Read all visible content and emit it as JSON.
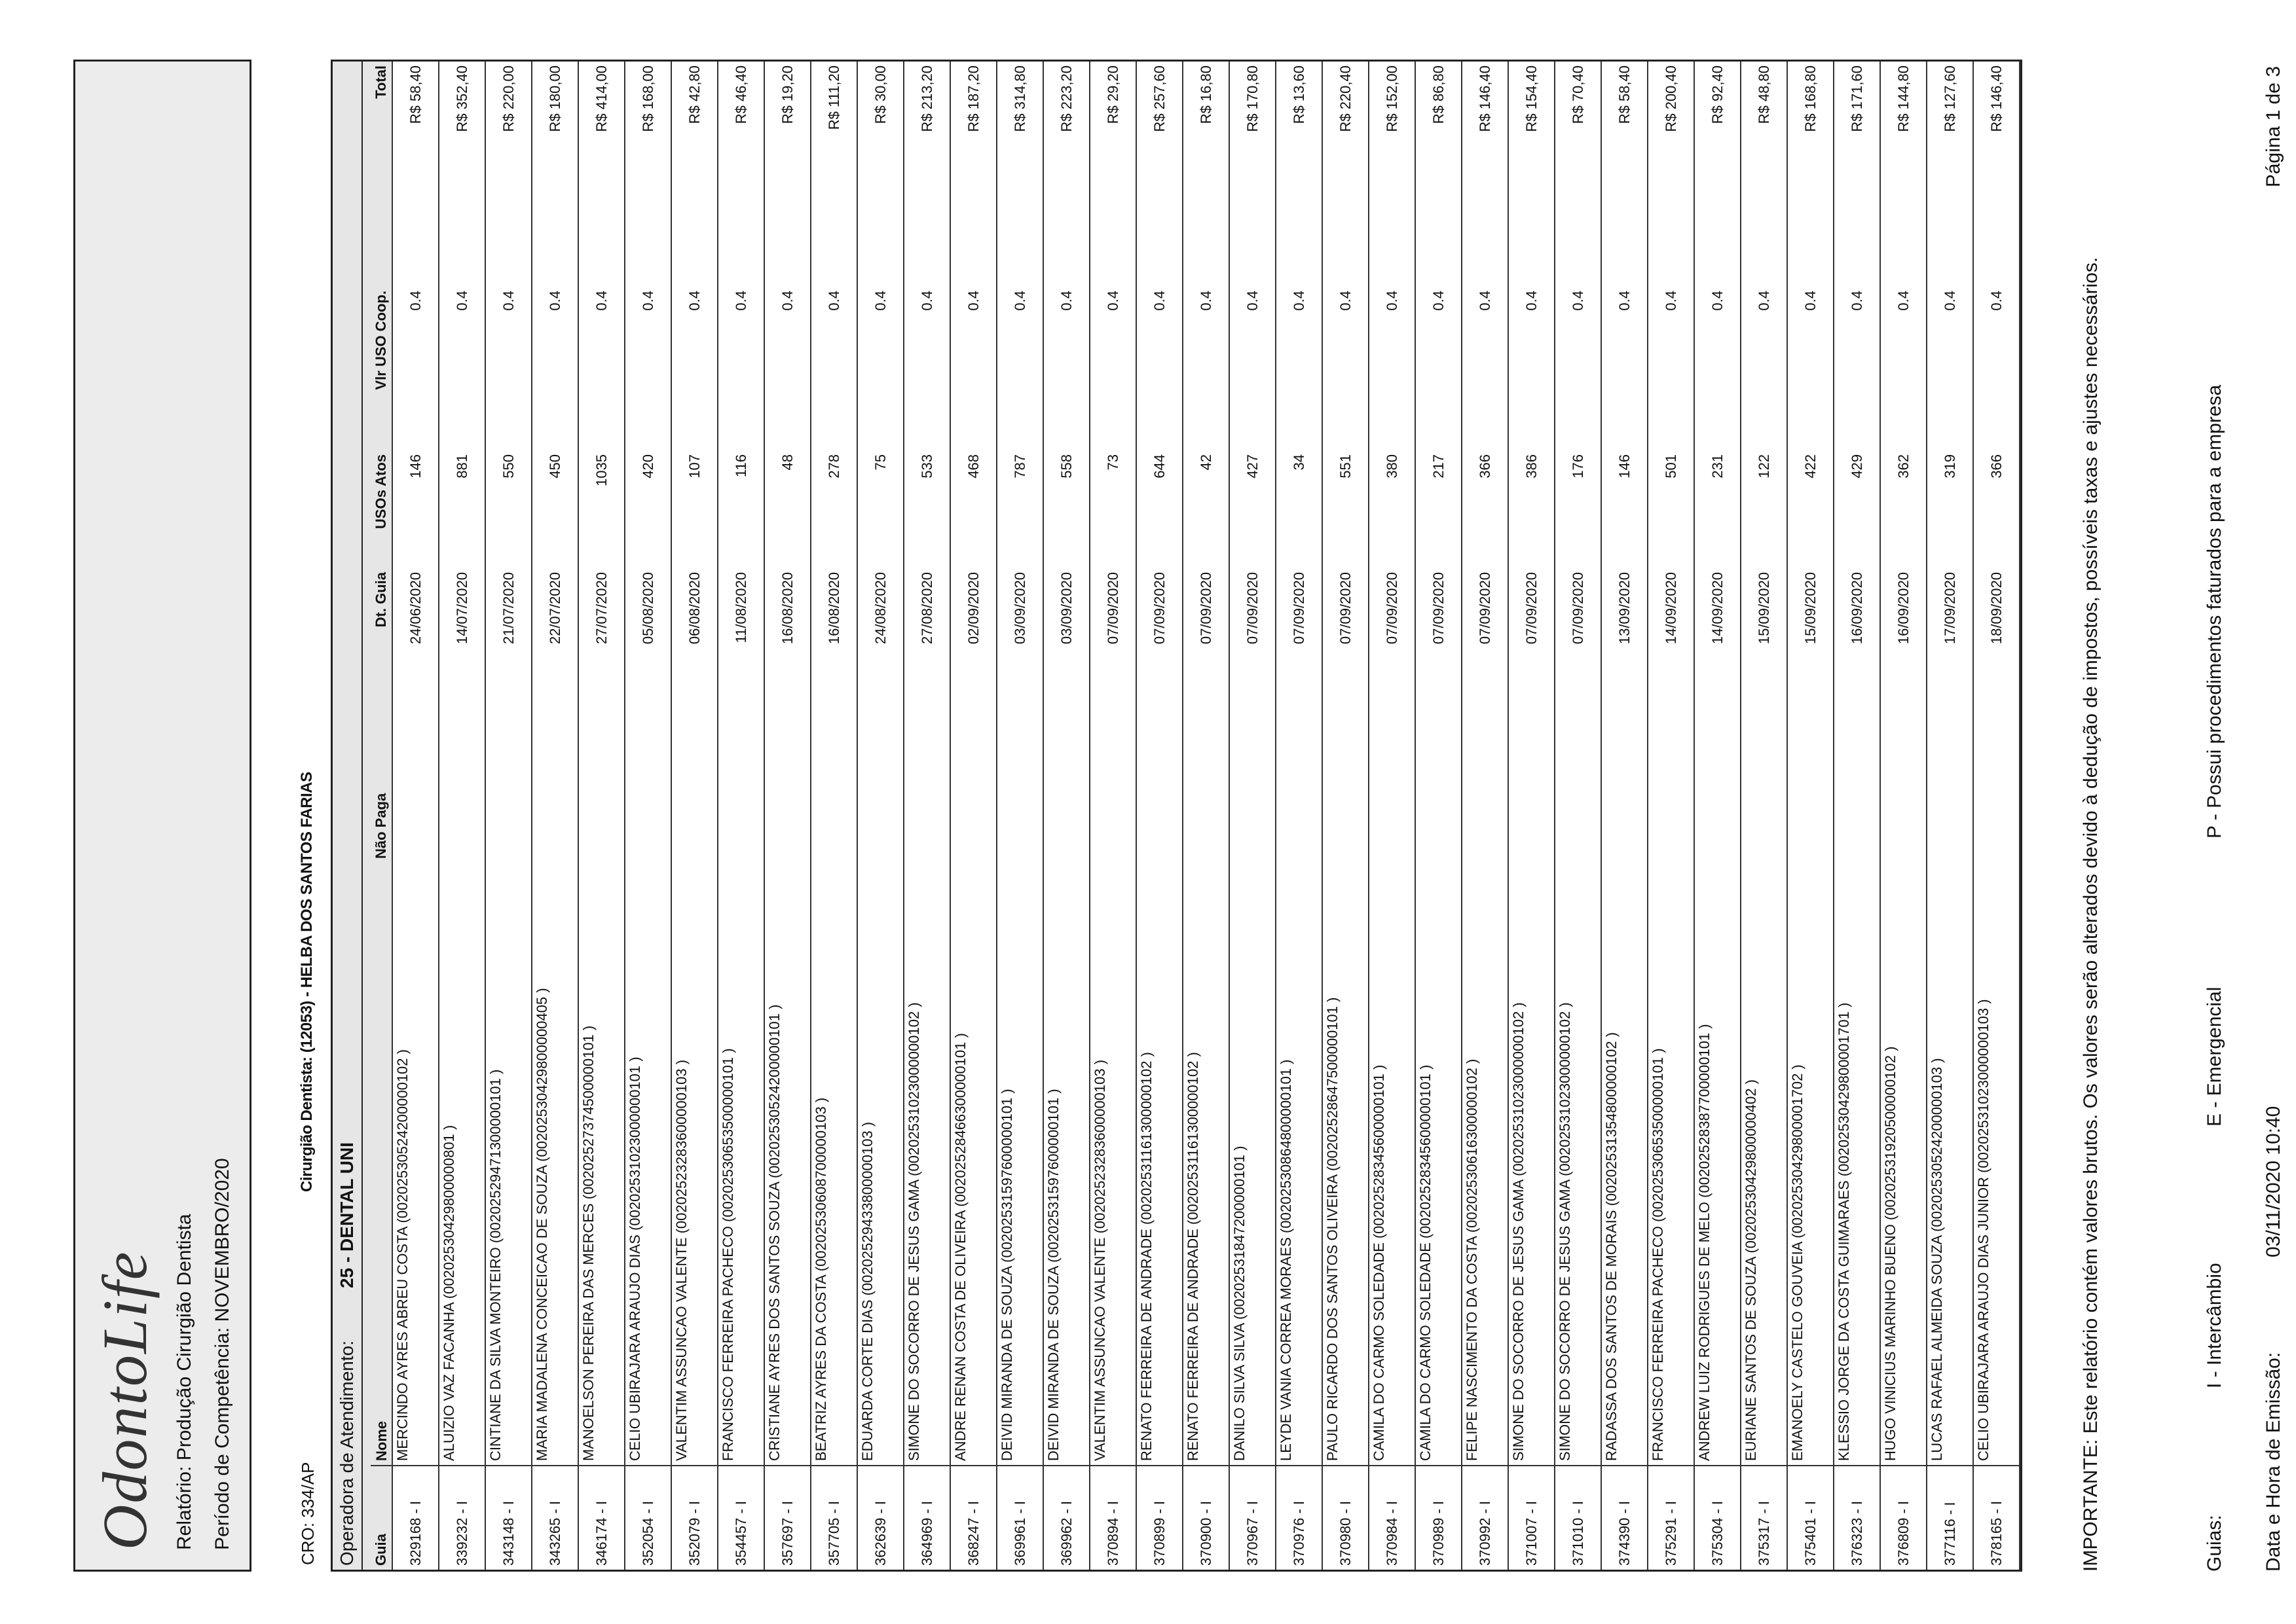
{
  "header": {
    "logo": "OdontoLife",
    "report": "Relatório: Produção Cirurgião Dentista",
    "period": "Período de Competência: NOVEMBRO/2020"
  },
  "cro": "CRO: 334/AP",
  "dentist": "Cirurgião Dentista: (12053) - HELBA DOS SANTOS FARIAS",
  "operator_label": "Operadora de Atendimento:",
  "operator": "25 - DENTAL UNI",
  "table": {
    "columns": {
      "guia": "Guia",
      "nome": "Nome",
      "nao_paga": "Não Paga",
      "dt_guia": "Dt. Guia",
      "usos_atos": "USOs Atos",
      "vlr_uso_coop": "Vlr USO Coop.",
      "total": "Total"
    },
    "rows": [
      {
        "guia": "329168 - I",
        "nome": "MERCINDO AYRES ABREU COSTA (00202530524200000102 )",
        "dt_guia": "24/06/2020",
        "usos_atos": "146",
        "vlr_uso_coop": "0.4",
        "total": "R$ 58,40"
      },
      {
        "guia": "339232 - I",
        "nome": "ALUIZIO VAZ FACANHA (00202530429800000801 )",
        "dt_guia": "14/07/2020",
        "usos_atos": "881",
        "vlr_uso_coop": "0.4",
        "total": "R$ 352,40"
      },
      {
        "guia": "343148 - I",
        "nome": "CINTIANE DA SILVA MONTEIRO (00202529471300000101 )",
        "dt_guia": "21/07/2020",
        "usos_atos": "550",
        "vlr_uso_coop": "0.4",
        "total": "R$ 220,00"
      },
      {
        "guia": "343265 - I",
        "nome": "MARIA MADALENA CONCEICAO DE SOUZA (00202530429800000405 )",
        "dt_guia": "22/07/2020",
        "usos_atos": "450",
        "vlr_uso_coop": "0.4",
        "total": "R$ 180,00"
      },
      {
        "guia": "346174 - I",
        "nome": "MANOELSON PEREIRA DAS MERCES (00202527374500000101 )",
        "dt_guia": "27/07/2020",
        "usos_atos": "1035",
        "vlr_uso_coop": "0.4",
        "total": "R$ 414,00"
      },
      {
        "guia": "352054 - I",
        "nome": "CELIO UBIRAJARA ARAUJO DIAS (00202531023000000101 )",
        "dt_guia": "05/08/2020",
        "usos_atos": "420",
        "vlr_uso_coop": "0.4",
        "total": "R$ 168,00"
      },
      {
        "guia": "352079 - I",
        "nome": "VALENTIM ASSUNCAO VALENTE (00202523283600000103 )",
        "dt_guia": "06/08/2020",
        "usos_atos": "107",
        "vlr_uso_coop": "0.4",
        "total": "R$ 42,80"
      },
      {
        "guia": "354457 - I",
        "nome": "FRANCISCO FERREIRA PACHECO (00202530653500000101 )",
        "dt_guia": "11/08/2020",
        "usos_atos": "116",
        "vlr_uso_coop": "0.4",
        "total": "R$ 46,40"
      },
      {
        "guia": "357697 - I",
        "nome": "CRISTIANE AYRES DOS SANTOS SOUZA (00202530524200000101 )",
        "dt_guia": "16/08/2020",
        "usos_atos": "48",
        "vlr_uso_coop": "0.4",
        "total": "R$ 19,20"
      },
      {
        "guia": "357705 - I",
        "nome": "BEATRIZ AYRES DA COSTA (00202530608700000103 )",
        "dt_guia": "16/08/2020",
        "usos_atos": "278",
        "vlr_uso_coop": "0.4",
        "total": "R$ 111,20"
      },
      {
        "guia": "362639 - I",
        "nome": "EDUARDA CORTE DIAS (00202529433800000103 )",
        "dt_guia": "24/08/2020",
        "usos_atos": "75",
        "vlr_uso_coop": "0.4",
        "total": "R$ 30,00"
      },
      {
        "guia": "364969 - I",
        "nome": "SIMONE DO SOCORRO DE JESUS GAMA (00202531023000000102 )",
        "dt_guia": "27/08/2020",
        "usos_atos": "533",
        "vlr_uso_coop": "0.4",
        "total": "R$ 213,20"
      },
      {
        "guia": "368247 - I",
        "nome": "ANDRE RENAN COSTA DE OLIVEIRA (00202528466300000101 )",
        "dt_guia": "02/09/2020",
        "usos_atos": "468",
        "vlr_uso_coop": "0.4",
        "total": "R$ 187,20"
      },
      {
        "guia": "369961 - I",
        "nome": "DEIVID MIRANDA DE SOUZA (00202531597600000101 )",
        "dt_guia": "03/09/2020",
        "usos_atos": "787",
        "vlr_uso_coop": "0.4",
        "total": "R$ 314,80"
      },
      {
        "guia": "369962 - I",
        "nome": "DEIVID MIRANDA DE SOUZA (00202531597600000101 )",
        "dt_guia": "03/09/2020",
        "usos_atos": "558",
        "vlr_uso_coop": "0.4",
        "total": "R$ 223,20"
      },
      {
        "guia": "370894 - I",
        "nome": "VALENTIM ASSUNCAO VALENTE (00202523283600000103 )",
        "dt_guia": "07/09/2020",
        "usos_atos": "73",
        "vlr_uso_coop": "0.4",
        "total": "R$ 29,20"
      },
      {
        "guia": "370899 - I",
        "nome": "RENATO FERREIRA DE ANDRADE (00202531161300000102 )",
        "dt_guia": "07/09/2020",
        "usos_atos": "644",
        "vlr_uso_coop": "0.4",
        "total": "R$ 257,60"
      },
      {
        "guia": "370900 - I",
        "nome": "RENATO FERREIRA DE ANDRADE (00202531161300000102 )",
        "dt_guia": "07/09/2020",
        "usos_atos": "42",
        "vlr_uso_coop": "0.4",
        "total": "R$ 16,80"
      },
      {
        "guia": "370967 - I",
        "nome": "DANILO SILVA SILVA (00202531847200000101 )",
        "dt_guia": "07/09/2020",
        "usos_atos": "427",
        "vlr_uso_coop": "0.4",
        "total": "R$ 170,80"
      },
      {
        "guia": "370976 - I",
        "nome": "LEYDE VANIA CORREA MORAES (00202530864800000101 )",
        "dt_guia": "07/09/2020",
        "usos_atos": "34",
        "vlr_uso_coop": "0.4",
        "total": "R$ 13,60"
      },
      {
        "guia": "370980 - I",
        "nome": "PAULO RICARDO DOS SANTOS OLIVEIRA (00202528647500000101 )",
        "dt_guia": "07/09/2020",
        "usos_atos": "551",
        "vlr_uso_coop": "0.4",
        "total": "R$ 220,40"
      },
      {
        "guia": "370984 - I",
        "nome": "CAMILA DO CARMO SOLEDADE (00202528345600000101 )",
        "dt_guia": "07/09/2020",
        "usos_atos": "380",
        "vlr_uso_coop": "0.4",
        "total": "R$ 152,00"
      },
      {
        "guia": "370989 - I",
        "nome": "CAMILA DO CARMO SOLEDADE (00202528345600000101 )",
        "dt_guia": "07/09/2020",
        "usos_atos": "217",
        "vlr_uso_coop": "0.4",
        "total": "R$ 86,80"
      },
      {
        "guia": "370992 - I",
        "nome": "FELIPE NASCIMENTO DA COSTA (00202530616300000102 )",
        "dt_guia": "07/09/2020",
        "usos_atos": "366",
        "vlr_uso_coop": "0.4",
        "total": "R$ 146,40"
      },
      {
        "guia": "371007 - I",
        "nome": "SIMONE DO SOCORRO DE JESUS GAMA (00202531023000000102 )",
        "dt_guia": "07/09/2020",
        "usos_atos": "386",
        "vlr_uso_coop": "0.4",
        "total": "R$ 154,40"
      },
      {
        "guia": "371010 - I",
        "nome": "SIMONE DO SOCORRO DE JESUS GAMA (00202531023000000102 )",
        "dt_guia": "07/09/2020",
        "usos_atos": "176",
        "vlr_uso_coop": "0.4",
        "total": "R$ 70,40"
      },
      {
        "guia": "374390 - I",
        "nome": "RADASSA DOS SANTOS DE MORAIS (00202531354800000102 )",
        "dt_guia": "13/09/2020",
        "usos_atos": "146",
        "vlr_uso_coop": "0.4",
        "total": "R$ 58,40"
      },
      {
        "guia": "375291 - I",
        "nome": "FRANCISCO FERREIRA PACHECO (00202530653500000101 )",
        "dt_guia": "14/09/2020",
        "usos_atos": "501",
        "vlr_uso_coop": "0.4",
        "total": "R$ 200,40"
      },
      {
        "guia": "375304 - I",
        "nome": "ANDREW LUIZ RODRIGUES DE MELO (00202528387700000101 )",
        "dt_guia": "14/09/2020",
        "usos_atos": "231",
        "vlr_uso_coop": "0.4",
        "total": "R$ 92,40"
      },
      {
        "guia": "375317 - I",
        "nome": "EURIANE SANTOS DE SOUZA (00202530429800000402 )",
        "dt_guia": "15/09/2020",
        "usos_atos": "122",
        "vlr_uso_coop": "0.4",
        "total": "R$ 48,80"
      },
      {
        "guia": "375401 - I",
        "nome": "EMANOELY CASTELO GOUVEIA (00202530429800001702 )",
        "dt_guia": "15/09/2020",
        "usos_atos": "422",
        "vlr_uso_coop": "0.4",
        "total": "R$ 168,80"
      },
      {
        "guia": "376323 - I",
        "nome": "KLESSIO JORGE DA COSTA GUIMARAES (00202530429800001701 )",
        "dt_guia": "16/09/2020",
        "usos_atos": "429",
        "vlr_uso_coop": "0.4",
        "total": "R$ 171,60"
      },
      {
        "guia": "376809 - I",
        "nome": "HUGO VINICIUS MARINHO BUENO (00202531920500000102 )",
        "dt_guia": "16/09/2020",
        "usos_atos": "362",
        "vlr_uso_coop": "0.4",
        "total": "R$ 144,80"
      },
      {
        "guia": "377116 - I",
        "nome": "LUCAS RAFAEL ALMEIDA SOUZA (00202530524200000103 )",
        "dt_guia": "17/09/2020",
        "usos_atos": "319",
        "vlr_uso_coop": "0.4",
        "total": "R$ 127,60"
      },
      {
        "guia": "378165 - I",
        "nome": "CELIO UBIRAJARA ARAUJO DIAS JUNIOR (00202531023000000103 )",
        "dt_guia": "18/09/2020",
        "usos_atos": "366",
        "vlr_uso_coop": "0.4",
        "total": "R$ 146,40"
      }
    ]
  },
  "notice": "IMPORTANTE: Este relatório contém valores brutos. Os valores serão alterados devido à dedução de impostos, possíveis taxas e ajustes necessários.",
  "legend": {
    "label": "Guias:",
    "items": [
      "I - Intercâmbio",
      "E - Emergencial",
      "P - Possui procedimentos faturados para a empresa"
    ]
  },
  "footer": {
    "label": "Data e Hora de Emissão:",
    "datetime": "03/11/2020 10:40",
    "page": "Página 1 de 3"
  }
}
